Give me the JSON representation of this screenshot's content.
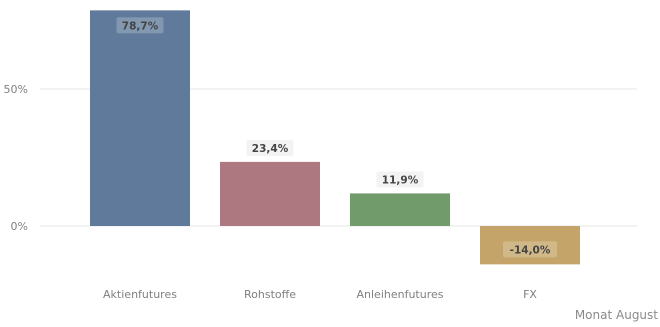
{
  "chart_data": {
    "type": "bar",
    "categories": [
      "Aktienfutures",
      "Rohstoffe",
      "Anleihenfutures",
      "FX"
    ],
    "values": [
      78.7,
      23.4,
      11.9,
      -14.0
    ],
    "value_labels": [
      "78,7%",
      "23,4%",
      "11,9%",
      "-14,0%"
    ],
    "colors": [
      "#5f7a9a",
      "#ad7880",
      "#729b6c",
      "#c4a468"
    ],
    "yticks": [
      {
        "value": 0,
        "label": "0%"
      },
      {
        "value": 50,
        "label": "50%"
      }
    ],
    "ylim": [
      -20,
      80
    ],
    "grid": true,
    "footer": "Monat August",
    "title": "",
    "xlabel": "",
    "ylabel": ""
  }
}
